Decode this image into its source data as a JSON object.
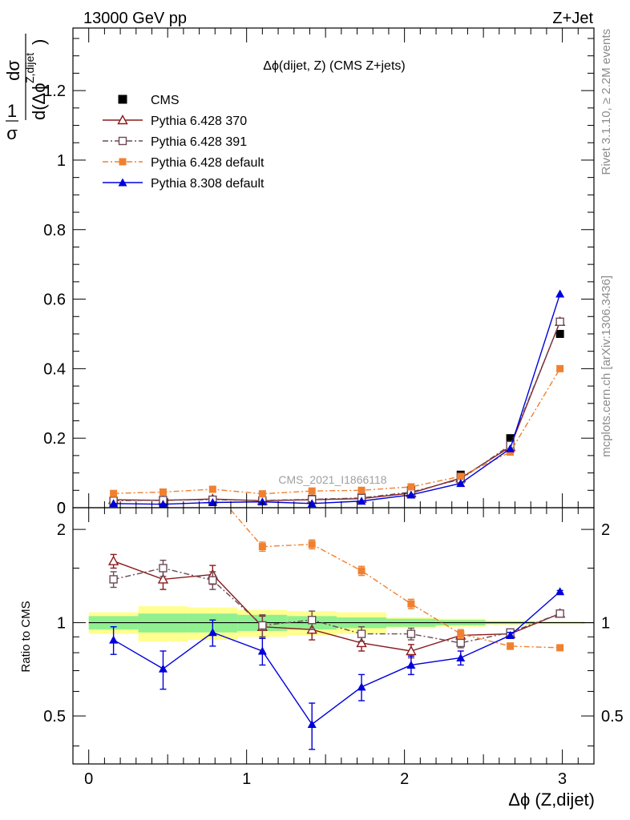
{
  "header": {
    "left": "13000 GeV pp",
    "right": "Z+Jet"
  },
  "side_text": {
    "rivet": "Rivet 3.1.10, ≥ 2.2M events",
    "site": "mcplots.cern.ch [arXiv:1306.3436]"
  },
  "watermark": "CMS_2021_I1866118",
  "chart_data": {
    "type": "scatter",
    "title": "Δϕ(dijet, Z) (CMS Z+jets)",
    "xlabel": "Δϕ (Z,dijet)",
    "ylabel_main": {
      "frac": "1",
      "sigma": "σ",
      "num": "dσ",
      "den": "d(Δϕ",
      "sup": "Z,dijet",
      "close": ")"
    },
    "ylabel_ratio": "Ratio to CMS",
    "xlim": [
      -0.1,
      3.2
    ],
    "ylim_main": [
      0,
      1.38
    ],
    "ylim_ratio": [
      0.35,
      2.35
    ],
    "x_ticks": [
      0,
      1,
      2,
      3
    ],
    "y_ticks_main": [
      0,
      0.2,
      0.4,
      0.6,
      0.8,
      1,
      1.2
    ],
    "y_ticks_ratio": [
      0.5,
      1,
      2
    ],
    "x": [
      0.157,
      0.471,
      0.785,
      1.1,
      1.414,
      1.728,
      2.042,
      2.356,
      2.67,
      2.985
    ],
    "legend_position": "top-left",
    "series": [
      {
        "name": "CMS",
        "color": "#000000",
        "marker": "square-filled",
        "values": [
          0.015,
          0.015,
          0.018,
          0.02,
          0.025,
          0.03,
          0.05,
          0.095,
          0.2,
          0.5
        ]
      },
      {
        "name": "Pythia 6.428 370",
        "color": "#8b1a1a",
        "marker": "triangle-open",
        "line": "solid",
        "values": [
          0.023,
          0.021,
          0.025,
          0.02,
          0.023,
          0.026,
          0.042,
          0.085,
          0.175,
          0.535
        ],
        "ratio": [
          1.58,
          1.38,
          1.43,
          0.97,
          0.95,
          0.86,
          0.81,
          0.91,
          0.92,
          1.07
        ],
        "ratio_err": [
          0.08,
          0.1,
          0.1,
          0.08,
          0.07,
          0.05,
          0.04,
          0.03,
          0.02,
          0.01
        ]
      },
      {
        "name": "Pythia 6.428 391",
        "color": "#6b4a55",
        "marker": "square-open",
        "line": "dashdot",
        "values": [
          0.02,
          0.022,
          0.023,
          0.021,
          0.024,
          0.028,
          0.045,
          0.082,
          0.18,
          0.535
        ],
        "ratio": [
          1.38,
          1.5,
          1.37,
          0.98,
          1.02,
          0.92,
          0.92,
          0.86,
          0.93,
          1.07
        ],
        "ratio_err": [
          0.08,
          0.09,
          0.09,
          0.08,
          0.07,
          0.05,
          0.04,
          0.03,
          0.02,
          0.01
        ]
      },
      {
        "name": "Pythia 6.428 default",
        "color": "#f08030",
        "marker": "square-filled",
        "line": "dashdot",
        "values": [
          0.041,
          0.045,
          0.053,
          0.04,
          0.048,
          0.05,
          0.06,
          0.09,
          0.16,
          0.4
        ],
        "ratio": [
          null,
          null,
          null,
          1.76,
          1.79,
          1.47,
          1.15,
          0.92,
          0.84,
          0.83
        ],
        "ratio_err": [
          0,
          0,
          0,
          0.06,
          0.06,
          0.05,
          0.04,
          0.03,
          0.02,
          0.01
        ]
      },
      {
        "name": "Pythia 8.308 default",
        "color": "#0000dd",
        "marker": "triangle-filled",
        "line": "solid",
        "values": [
          0.012,
          0.01,
          0.015,
          0.017,
          0.012,
          0.019,
          0.037,
          0.07,
          0.17,
          0.615
        ],
        "ratio": [
          0.88,
          0.71,
          0.93,
          0.81,
          0.47,
          0.62,
          0.73,
          0.77,
          0.91,
          1.26
        ],
        "ratio_err": [
          0.09,
          0.1,
          0.09,
          0.08,
          0.08,
          0.06,
          0.05,
          0.04,
          0.02,
          0.01
        ]
      }
    ],
    "cms_band_green": [
      {
        "x0": 0.0,
        "x1": 0.314,
        "lo": 0.95,
        "hi": 1.05
      },
      {
        "x0": 0.314,
        "x1": 0.628,
        "lo": 0.93,
        "hi": 1.07
      },
      {
        "x0": 0.628,
        "x1": 0.942,
        "lo": 0.93,
        "hi": 1.07
      },
      {
        "x0": 0.942,
        "x1": 1.257,
        "lo": 0.94,
        "hi": 1.06
      },
      {
        "x0": 1.257,
        "x1": 1.571,
        "lo": 0.95,
        "hi": 1.05
      },
      {
        "x0": 1.571,
        "x1": 1.885,
        "lo": 0.96,
        "hi": 1.04
      },
      {
        "x0": 1.885,
        "x1": 2.199,
        "lo": 0.97,
        "hi": 1.03
      },
      {
        "x0": 2.199,
        "x1": 2.513,
        "lo": 0.98,
        "hi": 1.02
      },
      {
        "x0": 2.513,
        "x1": 2.827,
        "lo": 0.99,
        "hi": 1.01
      },
      {
        "x0": 2.827,
        "x1": 3.142,
        "lo": 0.995,
        "hi": 1.005
      }
    ],
    "cms_band_yellow": [
      {
        "x0": 0.0,
        "x1": 0.314,
        "lo": 0.92,
        "hi": 1.08
      },
      {
        "x0": 0.314,
        "x1": 0.628,
        "lo": 0.87,
        "hi": 1.13
      },
      {
        "x0": 0.628,
        "x1": 0.942,
        "lo": 0.88,
        "hi": 1.12
      },
      {
        "x0": 0.942,
        "x1": 1.257,
        "lo": 0.9,
        "hi": 1.1
      },
      {
        "x0": 1.257,
        "x1": 1.571,
        "lo": 0.91,
        "hi": 1.09
      },
      {
        "x0": 1.571,
        "x1": 1.885,
        "lo": 0.92,
        "hi": 1.08
      },
      {
        "x0": 1.885,
        "x1": 2.199,
        "lo": 0.96,
        "hi": 1.04
      },
      {
        "x0": 2.199,
        "x1": 2.513,
        "lo": 0.97,
        "hi": 1.03
      },
      {
        "x0": 2.513,
        "x1": 2.827,
        "lo": 0.985,
        "hi": 1.015
      },
      {
        "x0": 2.827,
        "x1": 3.142,
        "lo": 0.99,
        "hi": 1.01
      }
    ],
    "band_colors": {
      "green": "#90f090",
      "yellow": "#ffff90"
    }
  }
}
